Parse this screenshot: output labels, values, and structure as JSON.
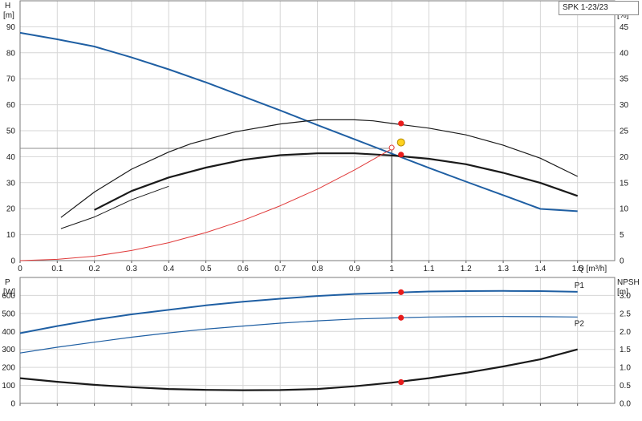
{
  "model_label": "SPK 1-23/23",
  "chart_data": [
    {
      "type": "line",
      "x_unit_label": "Q [m³/h]",
      "left_axis": {
        "name": "H",
        "unit": "[m]",
        "ylim": [
          0,
          100
        ],
        "ticks": [
          0,
          10,
          20,
          30,
          40,
          50,
          60,
          70,
          80,
          90
        ]
      },
      "right_axis": {
        "name": "eta",
        "unit": "[%]",
        "ylim": [
          0,
          50
        ],
        "ticks": [
          0,
          5,
          10,
          15,
          20,
          25,
          30,
          35,
          40,
          45
        ]
      },
      "xlim": [
        0,
        1.6
      ],
      "x_ticks": [
        0,
        0.1,
        0.2,
        0.3,
        0.4,
        0.5,
        0.6,
        0.7,
        0.8,
        0.9,
        1.0,
        1.1,
        1.2,
        1.3,
        1.4,
        1.5
      ],
      "grid": true,
      "series": [
        {
          "axis": "left",
          "color": "#1f5fa3",
          "width": 2,
          "x": [
            0,
            0.1,
            0.2,
            0.3,
            0.4,
            0.5,
            0.6,
            0.7,
            0.8,
            0.9,
            1.0,
            1.1,
            1.2,
            1.3,
            1.4,
            1.5
          ],
          "y": [
            87.7,
            85.2,
            82.4,
            78.2,
            73.6,
            68.6,
            63.2,
            57.8,
            52.2,
            46.7,
            41.2,
            35.7,
            30.4,
            25.2,
            19.9,
            19.0
          ]
        },
        {
          "axis": "right",
          "color": "#1a1a1a",
          "width": 1.2,
          "x": [
            0.11,
            0.2,
            0.3,
            0.4,
            0.46,
            0.58,
            0.7,
            0.8,
            0.9,
            0.95,
            1.0,
            1.1,
            1.2,
            1.3,
            1.4,
            1.5
          ],
          "y": [
            8.3,
            13.2,
            17.6,
            20.9,
            22.5,
            24.8,
            26.3,
            27.1,
            27.1,
            26.9,
            26.4,
            25.5,
            24.2,
            22.2,
            19.7,
            16.2
          ]
        },
        {
          "axis": "left",
          "color": "#1a1a1a",
          "width": 2.2,
          "x": [
            0.2,
            0.3,
            0.4,
            0.5,
            0.6,
            0.7,
            0.8,
            0.9,
            1.0,
            1.1,
            1.2,
            1.3,
            1.4,
            1.5
          ],
          "y": [
            19.5,
            26.8,
            32.0,
            35.8,
            38.8,
            40.6,
            41.3,
            41.3,
            40.5,
            39.2,
            37.1,
            33.8,
            29.9,
            24.9
          ]
        },
        {
          "axis": "left",
          "color": "#1a1a1a",
          "width": 1,
          "x": [
            0.11,
            0.2,
            0.3,
            0.4
          ],
          "y": [
            12.3,
            16.8,
            23.4,
            28.6
          ]
        },
        {
          "axis": "left",
          "color": "#e03a3a",
          "width": 1,
          "x": [
            0,
            0.1,
            0.2,
            0.3,
            0.4,
            0.5,
            0.6,
            0.7,
            0.8,
            0.9,
            1.0
          ],
          "y": [
            0,
            0.5,
            1.7,
            3.9,
            6.9,
            10.8,
            15.5,
            21.1,
            27.5,
            34.9,
            43.0
          ]
        }
      ],
      "duty_point": {
        "q": 1.025,
        "h": 45.5
      },
      "reference_lines": {
        "h": 43.2,
        "q": 1.0
      },
      "markers": [
        {
          "x": 1.025,
          "y": 52.8,
          "color": "#e81c1c"
        },
        {
          "x": 1.025,
          "y": 40.8,
          "color": "#e81c1c"
        }
      ],
      "small_marker": {
        "x": 1.0,
        "y": 43.5
      }
    },
    {
      "type": "line",
      "left_axis": {
        "name": "P",
        "unit": "[W]",
        "ylim": [
          0,
          700
        ],
        "ticks": [
          0,
          100,
          200,
          300,
          400,
          500,
          600
        ]
      },
      "right_axis": {
        "name": "NPSH",
        "unit": "[m]",
        "ylim": [
          0,
          3.5
        ],
        "ticks": [
          "0.0",
          "0.5",
          "1.0",
          "1.5",
          "2.0",
          "2.5",
          "3.0"
        ]
      },
      "xlim": [
        0,
        1.6
      ],
      "grid": true,
      "series": [
        {
          "name": "P1",
          "axis": "left",
          "color": "#1f5fa3",
          "width": 2,
          "x": [
            0,
            0.1,
            0.2,
            0.3,
            0.4,
            0.5,
            0.6,
            0.7,
            0.8,
            0.9,
            1.0,
            1.1,
            1.2,
            1.3,
            1.4,
            1.5
          ],
          "y": [
            390,
            430,
            465,
            495,
            520,
            545,
            565,
            582,
            597,
            608,
            615,
            622,
            624,
            625,
            624,
            620
          ]
        },
        {
          "name": "P2",
          "axis": "left",
          "color": "#1f5fa3",
          "width": 1.2,
          "x": [
            0,
            0.1,
            0.2,
            0.3,
            0.4,
            0.5,
            0.6,
            0.7,
            0.8,
            0.9,
            1.0,
            1.1,
            1.2,
            1.3,
            1.4,
            1.5
          ],
          "y": [
            280,
            312,
            340,
            368,
            392,
            413,
            430,
            446,
            459,
            469,
            475,
            480,
            482,
            483,
            482,
            480
          ]
        },
        {
          "axis": "left",
          "color": "#1a1a1a",
          "width": 2.2,
          "x": [
            0,
            0.1,
            0.2,
            0.3,
            0.4,
            0.5,
            0.6,
            0.7,
            0.8,
            0.9,
            1.0,
            1.1,
            1.2,
            1.3,
            1.4,
            1.5
          ],
          "y": [
            140,
            120,
            103,
            90,
            80,
            75,
            73,
            74,
            80,
            95,
            115,
            140,
            170,
            205,
            245,
            300
          ]
        }
      ],
      "markers": [
        {
          "x": 1.025,
          "y": 618,
          "color": "#e81c1c"
        },
        {
          "x": 1.025,
          "y": 476,
          "color": "#e81c1c"
        },
        {
          "x": 1.025,
          "y": 118,
          "color": "#e81c1c"
        }
      ]
    }
  ]
}
